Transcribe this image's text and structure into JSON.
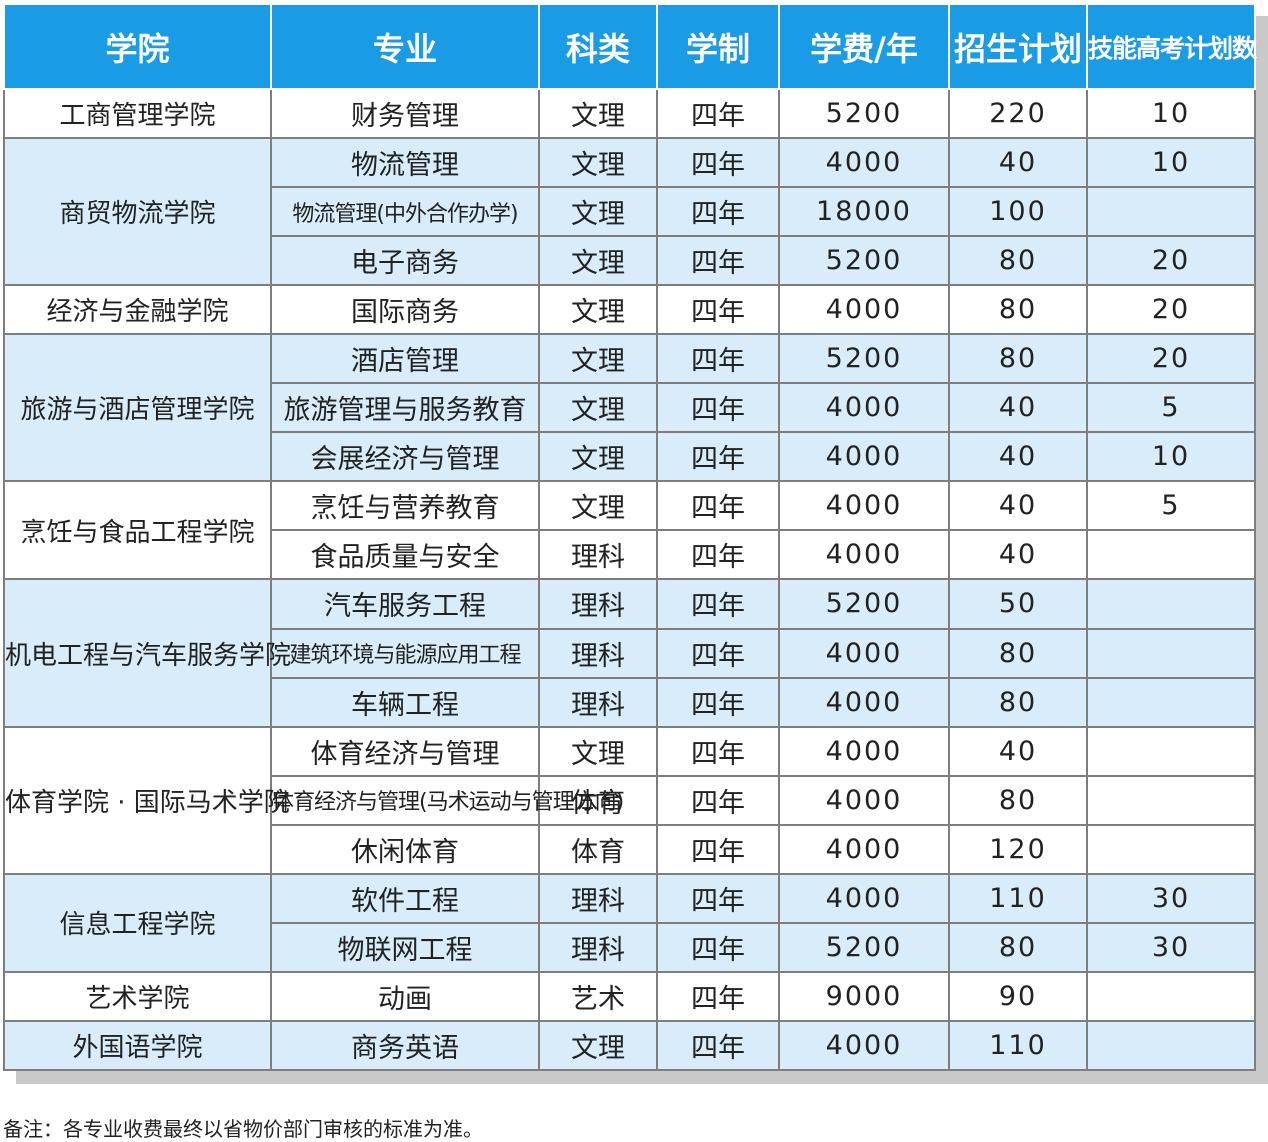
{
  "headers": [
    "学院",
    "专业",
    "科类",
    "学制",
    "学费/年",
    "招生计划",
    "技能高考计划数"
  ],
  "colors": {
    "header_bg": "#1a9be6",
    "band_blue": "#d8edf9",
    "band_white": "#ffffff"
  },
  "groups": [
    {
      "college": "工商管理学院",
      "band": "white",
      "rows": [
        {
          "major": "财务管理",
          "category": "文理",
          "duration": "四年",
          "tuition": "5200",
          "plan": "220",
          "skill_plan": "10"
        }
      ]
    },
    {
      "college": "商贸物流学院",
      "band": "blue",
      "rows": [
        {
          "major": "物流管理",
          "category": "文理",
          "duration": "四年",
          "tuition": "4000",
          "plan": "40",
          "skill_plan": "10"
        },
        {
          "major": "物流管理(中外合作办学)",
          "category": "文理",
          "duration": "四年",
          "tuition": "18000",
          "plan": "100",
          "skill_plan": ""
        },
        {
          "major": "电子商务",
          "category": "文理",
          "duration": "四年",
          "tuition": "5200",
          "plan": "80",
          "skill_plan": "20"
        }
      ]
    },
    {
      "college": "经济与金融学院",
      "band": "white",
      "rows": [
        {
          "major": "国际商务",
          "category": "文理",
          "duration": "四年",
          "tuition": "4000",
          "plan": "80",
          "skill_plan": "20"
        }
      ]
    },
    {
      "college": "旅游与酒店管理学院",
      "band": "blue",
      "rows": [
        {
          "major": "酒店管理",
          "category": "文理",
          "duration": "四年",
          "tuition": "5200",
          "plan": "80",
          "skill_plan": "20"
        },
        {
          "major": "旅游管理与服务教育",
          "category": "文理",
          "duration": "四年",
          "tuition": "4000",
          "plan": "40",
          "skill_plan": "5"
        },
        {
          "major": "会展经济与管理",
          "category": "文理",
          "duration": "四年",
          "tuition": "4000",
          "plan": "40",
          "skill_plan": "10"
        }
      ]
    },
    {
      "college": "烹饪与食品工程学院",
      "band": "white",
      "rows": [
        {
          "major": "烹饪与营养教育",
          "category": "文理",
          "duration": "四年",
          "tuition": "4000",
          "plan": "40",
          "skill_plan": "5"
        },
        {
          "major": "食品质量与安全",
          "category": "理科",
          "duration": "四年",
          "tuition": "4000",
          "plan": "40",
          "skill_plan": ""
        }
      ]
    },
    {
      "college": "机电工程与汽车服务学院",
      "band": "blue",
      "rows": [
        {
          "major": "汽车服务工程",
          "category": "理科",
          "duration": "四年",
          "tuition": "5200",
          "plan": "50",
          "skill_plan": ""
        },
        {
          "major": "建筑环境与能源应用工程",
          "category": "理科",
          "duration": "四年",
          "tuition": "4000",
          "plan": "80",
          "skill_plan": ""
        },
        {
          "major": "车辆工程",
          "category": "理科",
          "duration": "四年",
          "tuition": "4000",
          "plan": "80",
          "skill_plan": ""
        }
      ]
    },
    {
      "college": "体育学院 · 国际马术学院",
      "band": "white",
      "rows": [
        {
          "major": "体育经济与管理",
          "category": "文理",
          "duration": "四年",
          "tuition": "4000",
          "plan": "40",
          "skill_plan": ""
        },
        {
          "major": "体育经济与管理(马术运动与管理方向)",
          "category": "体育",
          "duration": "四年",
          "tuition": "4000",
          "plan": "80",
          "skill_plan": ""
        },
        {
          "major": "休闲体育",
          "category": "体育",
          "duration": "四年",
          "tuition": "4000",
          "plan": "120",
          "skill_plan": ""
        }
      ]
    },
    {
      "college": "信息工程学院",
      "band": "blue",
      "rows": [
        {
          "major": "软件工程",
          "category": "理科",
          "duration": "四年",
          "tuition": "4000",
          "plan": "110",
          "skill_plan": "30"
        },
        {
          "major": "物联网工程",
          "category": "理科",
          "duration": "四年",
          "tuition": "5200",
          "plan": "80",
          "skill_plan": "30"
        }
      ]
    },
    {
      "college": "艺术学院",
      "band": "white",
      "rows": [
        {
          "major": "动画",
          "category": "艺术",
          "duration": "四年",
          "tuition": "9000",
          "plan": "90",
          "skill_plan": ""
        }
      ]
    },
    {
      "college": "外国语学院",
      "band": "blue",
      "rows": [
        {
          "major": "商务英语",
          "category": "文理",
          "duration": "四年",
          "tuition": "4000",
          "plan": "110",
          "skill_plan": ""
        }
      ]
    }
  ],
  "note": "备注：各专业收费最终以省物价部门审核的标准为准。"
}
